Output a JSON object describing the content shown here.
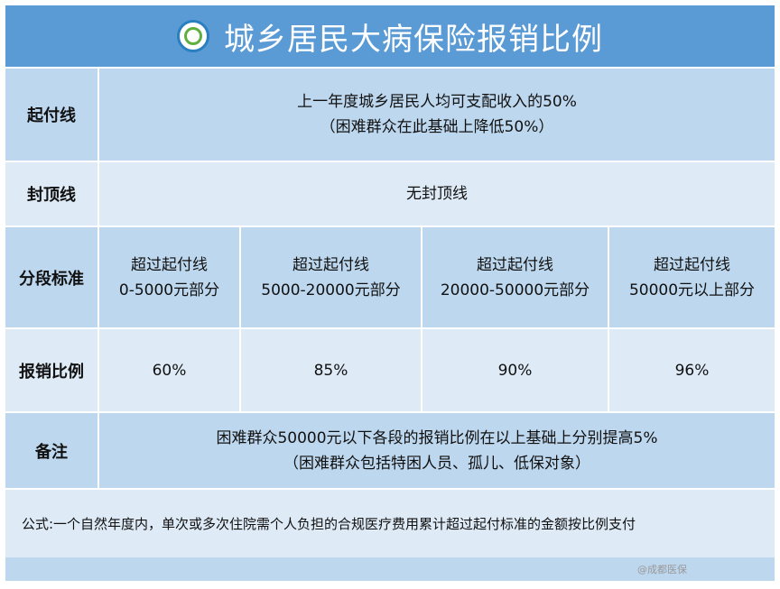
{
  "title": "城乡居民大病保险报销比例",
  "rows": {
    "deductible": {
      "label": "起付线",
      "line1": "上一年度城乡居民人均可支配收入的50%",
      "line2": "（困难群众在此基础上降低50%）"
    },
    "cap": {
      "label": "封顶线",
      "value": "无封顶线"
    },
    "tiers": {
      "label": "分段标准",
      "items": [
        {
          "line1": "超过起付线",
          "line2": "0-5000元部分"
        },
        {
          "line1": "超过起付线",
          "line2": "5000-20000元部分"
        },
        {
          "line1": "超过起付线",
          "line2": "20000-50000元部分"
        },
        {
          "line1": "超过起付线",
          "line2": "50000元以上部分"
        }
      ]
    },
    "ratio": {
      "label": "报销比例",
      "values": [
        "60%",
        "85%",
        "90%",
        "96%"
      ]
    },
    "note": {
      "label": "备注",
      "line1": "困难群众50000元以下各段的报销比例在以上基础上分别提高5%",
      "line2": "（困难群众包括特困人员、孤儿、低保对象）"
    }
  },
  "formula": "公式:一个自然年度内，单次或多次住院需个人负担的合规医疗费用累计超过起付标准的金额按比例支付",
  "watermark": "@成都医保"
}
